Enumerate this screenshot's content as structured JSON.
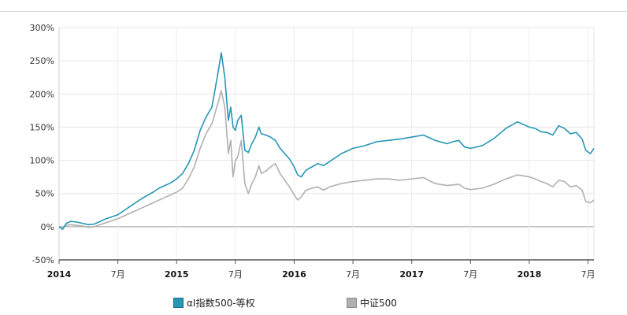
{
  "chart_data": {
    "type": "line",
    "title": "",
    "xlabel": "",
    "ylabel": "",
    "ylim": [
      -50,
      300
    ],
    "y_ticks": [
      -50,
      0,
      50,
      100,
      150,
      200,
      250,
      300
    ],
    "y_tick_labels": [
      "-50%",
      "0%",
      "50%",
      "100%",
      "150%",
      "200%",
      "250%",
      "300%"
    ],
    "x_range": [
      2014.0,
      2018.55
    ],
    "x_ticks": [
      {
        "value": 2014.0,
        "label": "2014",
        "major": true
      },
      {
        "value": 2014.5,
        "label": "7月",
        "major": false
      },
      {
        "value": 2015.0,
        "label": "2015",
        "major": true
      },
      {
        "value": 2015.5,
        "label": "7月",
        "major": false
      },
      {
        "value": 2016.0,
        "label": "2016",
        "major": true
      },
      {
        "value": 2016.5,
        "label": "7月",
        "major": false
      },
      {
        "value": 2017.0,
        "label": "2017",
        "major": true
      },
      {
        "value": 2017.5,
        "label": "7月",
        "major": false
      },
      {
        "value": 2018.0,
        "label": "2018",
        "major": true
      },
      {
        "value": 2018.5,
        "label": "7月",
        "major": false
      }
    ],
    "grid": true,
    "legend_position": "bottom",
    "series": [
      {
        "name": "αI指数500-等权",
        "color": "#2596b4",
        "x": [
          2014.0,
          2014.03,
          2014.06,
          2014.1,
          2014.15,
          2014.2,
          2014.25,
          2014.3,
          2014.35,
          2014.4,
          2014.45,
          2014.5,
          2014.55,
          2014.6,
          2014.65,
          2014.7,
          2014.75,
          2014.8,
          2014.85,
          2014.9,
          2014.95,
          2015.0,
          2015.05,
          2015.1,
          2015.15,
          2015.2,
          2015.25,
          2015.3,
          2015.35,
          2015.38,
          2015.41,
          2015.44,
          2015.46,
          2015.48,
          2015.5,
          2015.52,
          2015.55,
          2015.58,
          2015.61,
          2015.64,
          2015.67,
          2015.7,
          2015.72,
          2015.76,
          2015.8,
          2015.84,
          2015.88,
          2015.92,
          2015.96,
          2016.0,
          2016.03,
          2016.06,
          2016.1,
          2016.15,
          2016.2,
          2016.25,
          2016.3,
          2016.4,
          2016.5,
          2016.6,
          2016.7,
          2016.8,
          2016.9,
          2017.0,
          2017.1,
          2017.2,
          2017.3,
          2017.35,
          2017.4,
          2017.45,
          2017.5,
          2017.6,
          2017.7,
          2017.8,
          2017.9,
          2018.0,
          2018.05,
          2018.1,
          2018.15,
          2018.2,
          2018.25,
          2018.3,
          2018.35,
          2018.4,
          2018.45,
          2018.48,
          2018.52,
          2018.55
        ],
        "values": [
          0,
          -4,
          5,
          8,
          7,
          5,
          3,
          4,
          8,
          12,
          15,
          18,
          24,
          30,
          36,
          42,
          47,
          52,
          58,
          62,
          66,
          72,
          80,
          95,
          115,
          145,
          165,
          180,
          230,
          262,
          225,
          160,
          180,
          150,
          145,
          160,
          168,
          115,
          112,
          125,
          135,
          150,
          140,
          138,
          135,
          130,
          118,
          110,
          102,
          90,
          78,
          75,
          85,
          90,
          95,
          92,
          98,
          110,
          118,
          122,
          128,
          130,
          132,
          135,
          138,
          130,
          125,
          128,
          130,
          120,
          118,
          122,
          133,
          148,
          158,
          150,
          148,
          143,
          142,
          138,
          152,
          148,
          140,
          142,
          132,
          115,
          110,
          118
        ]
      },
      {
        "name": "中证500",
        "color": "#b0b0b0",
        "x": [
          2014.0,
          2014.03,
          2014.06,
          2014.1,
          2014.15,
          2014.2,
          2014.25,
          2014.3,
          2014.35,
          2014.4,
          2014.45,
          2014.5,
          2014.55,
          2014.6,
          2014.65,
          2014.7,
          2014.75,
          2014.8,
          2014.85,
          2014.9,
          2014.95,
          2015.0,
          2015.05,
          2015.1,
          2015.15,
          2015.2,
          2015.25,
          2015.3,
          2015.35,
          2015.38,
          2015.41,
          2015.44,
          2015.46,
          2015.48,
          2015.5,
          2015.52,
          2015.55,
          2015.58,
          2015.61,
          2015.64,
          2015.67,
          2015.7,
          2015.72,
          2015.76,
          2015.8,
          2015.84,
          2015.88,
          2015.92,
          2015.96,
          2016.0,
          2016.03,
          2016.06,
          2016.1,
          2016.15,
          2016.2,
          2016.25,
          2016.3,
          2016.4,
          2016.5,
          2016.6,
          2016.7,
          2016.8,
          2016.9,
          2017.0,
          2017.1,
          2017.2,
          2017.3,
          2017.35,
          2017.4,
          2017.45,
          2017.5,
          2017.6,
          2017.7,
          2017.8,
          2017.9,
          2018.0,
          2018.05,
          2018.1,
          2018.15,
          2018.2,
          2018.25,
          2018.3,
          2018.35,
          2018.4,
          2018.45,
          2018.48,
          2018.52,
          2018.55
        ],
        "values": [
          0,
          -3,
          2,
          3,
          2,
          1,
          -1,
          0,
          3,
          6,
          9,
          12,
          16,
          20,
          24,
          28,
          32,
          36,
          40,
          44,
          48,
          52,
          58,
          72,
          90,
          118,
          140,
          155,
          185,
          205,
          180,
          110,
          130,
          75,
          100,
          105,
          130,
          65,
          50,
          65,
          75,
          92,
          80,
          84,
          90,
          95,
          80,
          70,
          60,
          48,
          40,
          45,
          55,
          58,
          60,
          55,
          60,
          65,
          68,
          70,
          72,
          72,
          70,
          72,
          74,
          65,
          62,
          63,
          64,
          58,
          56,
          58,
          64,
          72,
          78,
          75,
          72,
          68,
          65,
          60,
          70,
          68,
          60,
          62,
          55,
          38,
          36,
          40
        ]
      }
    ]
  }
}
